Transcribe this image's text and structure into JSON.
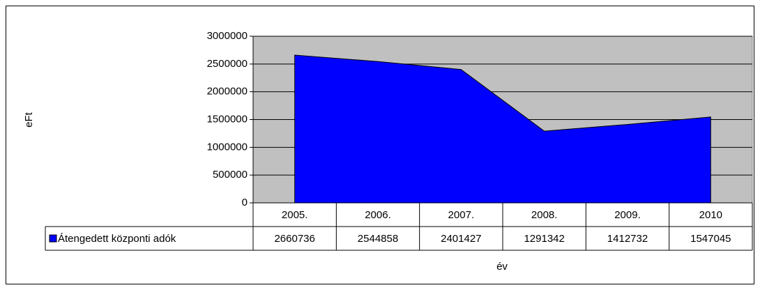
{
  "chart_data": {
    "type": "area",
    "categories": [
      "2005.",
      "2006.",
      "2007.",
      "2008.",
      "2009.",
      "2010"
    ],
    "series": [
      {
        "name": "Átengedett központi adók",
        "color": "#0000ff",
        "values": [
          2660736,
          2544858,
          2401427,
          1291342,
          1412732,
          1547045
        ]
      }
    ],
    "ylim": [
      0,
      3000000
    ],
    "yticks": [
      0,
      500000,
      1000000,
      1500000,
      2000000,
      2500000,
      3000000
    ],
    "xlabel": "év",
    "ylabel": "eFt",
    "grid": true,
    "data_table": true
  }
}
